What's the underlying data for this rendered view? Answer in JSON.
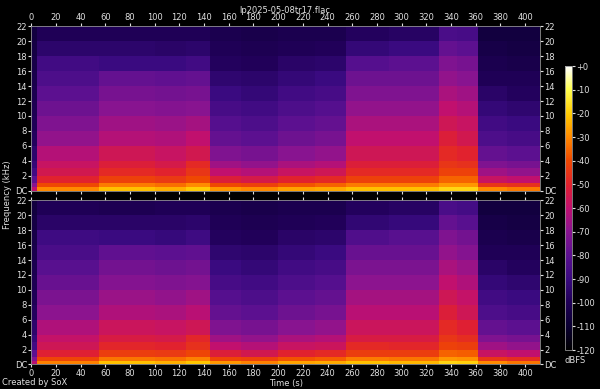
{
  "title": "lp2025-05-08tr17.flac",
  "xlabel": "Time (s)",
  "ylabel": "Frequency (kHz)",
  "credit": "Created by SoX",
  "colorbar_label": "dBFS",
  "colorbar_range": [
    -120,
    0
  ],
  "colorbar_ticks": [
    {
      "value": 0,
      "label": "+0"
    },
    -10,
    -20,
    -30,
    -40,
    -50,
    -60,
    -70,
    -80,
    -90,
    -100,
    -110,
    -120
  ],
  "chart_data": [
    {
      "type": "heatmap",
      "xlim": [
        0,
        412
      ],
      "ylim": [
        0,
        22.05
      ],
      "xticks": [
        0,
        20,
        40,
        60,
        80,
        100,
        120,
        140,
        160,
        180,
        200,
        220,
        240,
        260,
        280,
        300,
        320,
        340,
        360,
        380,
        400
      ],
      "yticks": [
        {
          "value": 0,
          "label": "DC"
        },
        2,
        4,
        6,
        8,
        10,
        12,
        14,
        16,
        18,
        20,
        22
      ],
      "x_edges": [
        0,
        5,
        55,
        100,
        125,
        145,
        170,
        200,
        230,
        255,
        290,
        330,
        345,
        362,
        385,
        412
      ],
      "y_edges": [
        0,
        0.5,
        1,
        2,
        3,
        4,
        6,
        8,
        10,
        12,
        14,
        16,
        18,
        20,
        22.05
      ],
      "cells": [
        [
          -60,
          -30,
          -22,
          -24,
          -20,
          -28,
          -30,
          -26,
          -25,
          -22,
          -22,
          -18,
          -18,
          -30,
          -32
        ],
        [
          -70,
          -40,
          -32,
          -34,
          -30,
          -40,
          -42,
          -38,
          -36,
          -32,
          -32,
          -28,
          -28,
          -45,
          -46
        ],
        [
          -80,
          -50,
          -42,
          -44,
          -40,
          -52,
          -54,
          -50,
          -48,
          -42,
          -42,
          -36,
          -36,
          -58,
          -60
        ],
        [
          -88,
          -55,
          -48,
          -50,
          -45,
          -60,
          -62,
          -58,
          -56,
          -48,
          -48,
          -42,
          -42,
          -66,
          -68
        ],
        [
          -92,
          -58,
          -52,
          -54,
          -48,
          -66,
          -68,
          -64,
          -62,
          -52,
          -52,
          -45,
          -46,
          -72,
          -74
        ],
        [
          -95,
          -62,
          -56,
          -58,
          -55,
          -72,
          -74,
          -70,
          -68,
          -56,
          -56,
          -48,
          -50,
          -78,
          -80
        ],
        [
          -98,
          -68,
          -62,
          -63,
          -60,
          -78,
          -80,
          -76,
          -74,
          -60,
          -60,
          -52,
          -55,
          -84,
          -86
        ],
        [
          -100,
          -72,
          -66,
          -67,
          -65,
          -82,
          -84,
          -80,
          -78,
          -64,
          -64,
          -56,
          -58,
          -88,
          -90
        ],
        [
          -101,
          -76,
          -70,
          -71,
          -70,
          -86,
          -88,
          -84,
          -82,
          -68,
          -68,
          -60,
          -62,
          -92,
          -94
        ],
        [
          -102,
          -80,
          -74,
          -75,
          -74,
          -90,
          -92,
          -88,
          -86,
          -72,
          -72,
          -64,
          -66,
          -96,
          -98
        ],
        [
          -103,
          -84,
          -78,
          -79,
          -78,
          -94,
          -95,
          -92,
          -90,
          -76,
          -76,
          -68,
          -70,
          -100,
          -100
        ],
        [
          -104,
          -88,
          -90,
          -90,
          -88,
          -98,
          -99,
          -96,
          -95,
          -82,
          -80,
          -72,
          -74,
          -102,
          -103
        ],
        [
          -105,
          -95,
          -95,
          -96,
          -95,
          -100,
          -101,
          -100,
          -99,
          -92,
          -90,
          -78,
          -80,
          -104,
          -105
        ],
        [
          -106,
          -100,
          -100,
          -100,
          -100,
          -102,
          -103,
          -102,
          -102,
          -98,
          -97,
          -85,
          -86,
          -106,
          -106
        ]
      ]
    },
    {
      "type": "heatmap",
      "xlim": [
        0,
        412
      ],
      "ylim": [
        0,
        22.05
      ],
      "xticks": [
        0,
        20,
        40,
        60,
        80,
        100,
        120,
        140,
        160,
        180,
        200,
        220,
        240,
        260,
        280,
        300,
        320,
        340,
        360,
        380,
        400
      ],
      "yticks": [
        {
          "value": 0,
          "label": "DC"
        },
        2,
        4,
        6,
        8,
        10,
        12,
        14,
        16,
        18,
        20,
        22
      ],
      "x_edges": [
        0,
        5,
        55,
        100,
        125,
        145,
        170,
        200,
        230,
        255,
        290,
        330,
        345,
        362,
        385,
        412
      ],
      "y_edges": [
        0,
        0.5,
        1,
        2,
        3,
        4,
        6,
        8,
        10,
        12,
        14,
        16,
        18,
        20,
        22.05
      ],
      "cells": [
        [
          -61,
          -31,
          -22,
          -24,
          -21,
          -28,
          -31,
          -26,
          -25,
          -22,
          -23,
          -18,
          -19,
          -30,
          -33
        ],
        [
          -71,
          -41,
          -33,
          -34,
          -31,
          -41,
          -42,
          -38,
          -37,
          -32,
          -33,
          -28,
          -29,
          -45,
          -47
        ],
        [
          -80,
          -51,
          -43,
          -44,
          -41,
          -52,
          -55,
          -50,
          -48,
          -43,
          -43,
          -36,
          -37,
          -58,
          -60
        ],
        [
          -88,
          -56,
          -49,
          -50,
          -46,
          -60,
          -62,
          -58,
          -57,
          -48,
          -49,
          -42,
          -43,
          -66,
          -68
        ],
        [
          -92,
          -59,
          -53,
          -54,
          -49,
          -66,
          -68,
          -64,
          -62,
          -53,
          -53,
          -45,
          -47,
          -72,
          -74
        ],
        [
          -95,
          -63,
          -57,
          -58,
          -56,
          -72,
          -74,
          -70,
          -68,
          -57,
          -57,
          -48,
          -51,
          -78,
          -80
        ],
        [
          -98,
          -69,
          -63,
          -64,
          -61,
          -78,
          -80,
          -76,
          -74,
          -61,
          -61,
          -52,
          -56,
          -84,
          -86
        ],
        [
          -100,
          -73,
          -67,
          -68,
          -66,
          -82,
          -84,
          -80,
          -78,
          -65,
          -65,
          -56,
          -59,
          -88,
          -90
        ],
        [
          -101,
          -77,
          -71,
          -72,
          -71,
          -86,
          -88,
          -84,
          -82,
          -69,
          -69,
          -60,
          -63,
          -92,
          -94
        ],
        [
          -102,
          -81,
          -75,
          -76,
          -75,
          -90,
          -92,
          -88,
          -86,
          -73,
          -73,
          -64,
          -67,
          -96,
          -98
        ],
        [
          -103,
          -85,
          -79,
          -80,
          -79,
          -94,
          -95,
          -92,
          -90,
          -77,
          -77,
          -68,
          -71,
          -100,
          -100
        ],
        [
          -104,
          -89,
          -90,
          -91,
          -89,
          -98,
          -99,
          -96,
          -95,
          -83,
          -81,
          -72,
          -75,
          -102,
          -103
        ],
        [
          -105,
          -96,
          -96,
          -96,
          -95,
          -100,
          -101,
          -100,
          -99,
          -93,
          -91,
          -78,
          -81,
          -104,
          -105
        ],
        [
          -106,
          -100,
          -101,
          -100,
          -100,
          -102,
          -103,
          -102,
          -102,
          -98,
          -97,
          -85,
          -87,
          -106,
          -106
        ]
      ]
    }
  ]
}
